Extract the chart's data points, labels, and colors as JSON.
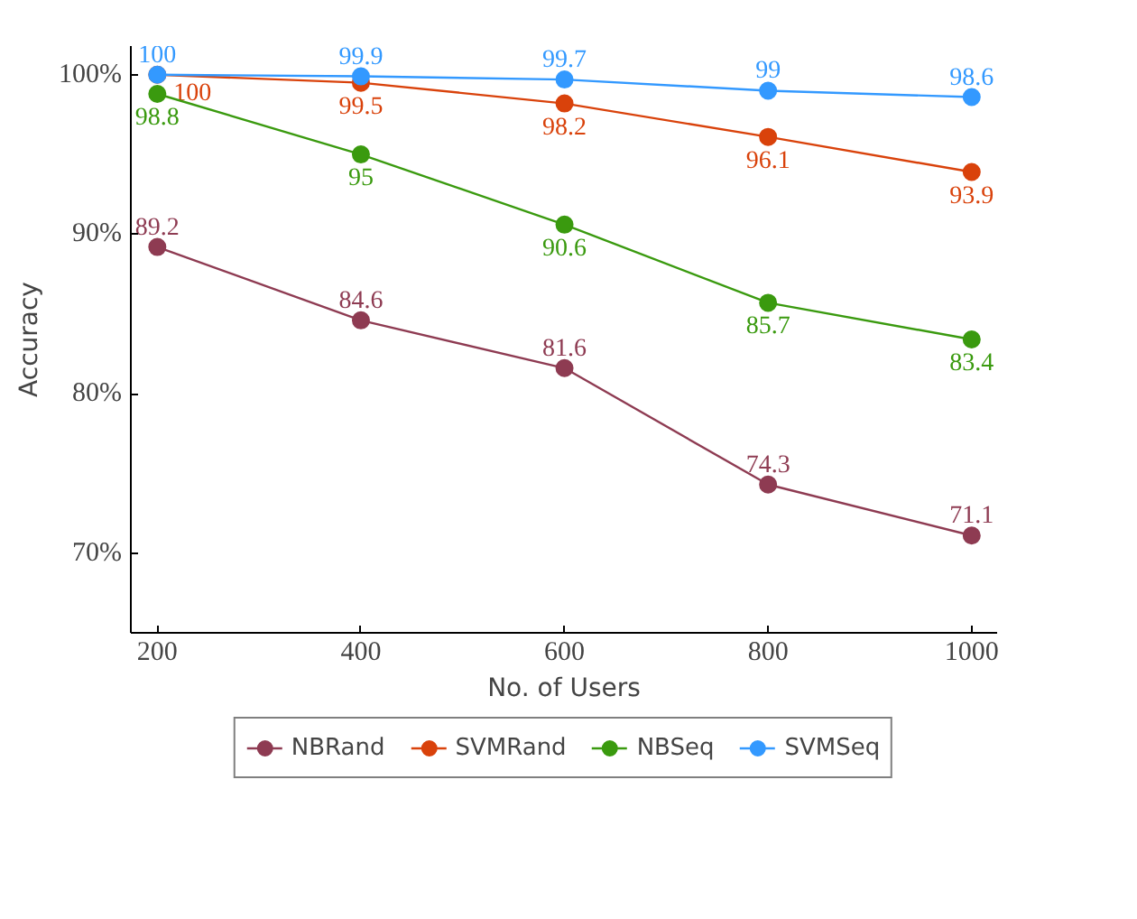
{
  "chart_data": {
    "type": "line",
    "xlabel": "No. of Users",
    "ylabel": "Accuracy",
    "x": [
      200,
      400,
      600,
      800,
      1000
    ],
    "series": [
      {
        "name": "NBRand",
        "color": "#8e3b52",
        "values": [
          89.2,
          84.6,
          81.6,
          74.3,
          71.1
        ]
      },
      {
        "name": "SVMRand",
        "color": "#d9420b",
        "values": [
          100,
          99.5,
          98.2,
          96.1,
          93.9
        ]
      },
      {
        "name": "NBSeq",
        "color": "#3a9a0f",
        "values": [
          98.8,
          95,
          90.6,
          85.7,
          83.4
        ]
      },
      {
        "name": "SVMSeq",
        "color": "#3399ff",
        "values": [
          100,
          99.9,
          99.7,
          99,
          98.6
        ]
      }
    ],
    "xlim": [
      174,
      1025
    ],
    "ylim": [
      65,
      101.8
    ],
    "xticks": [
      200,
      400,
      600,
      800,
      1000
    ],
    "yticks": [
      {
        "value": 70,
        "label": "70%"
      },
      {
        "value": 80,
        "label": "80%"
      },
      {
        "value": 90,
        "label": "90%"
      },
      {
        "value": 100,
        "label": "100%"
      }
    ],
    "data_labels": true,
    "legend": "bottom",
    "marker": "circle",
    "line_style": "solid",
    "grid": false
  }
}
